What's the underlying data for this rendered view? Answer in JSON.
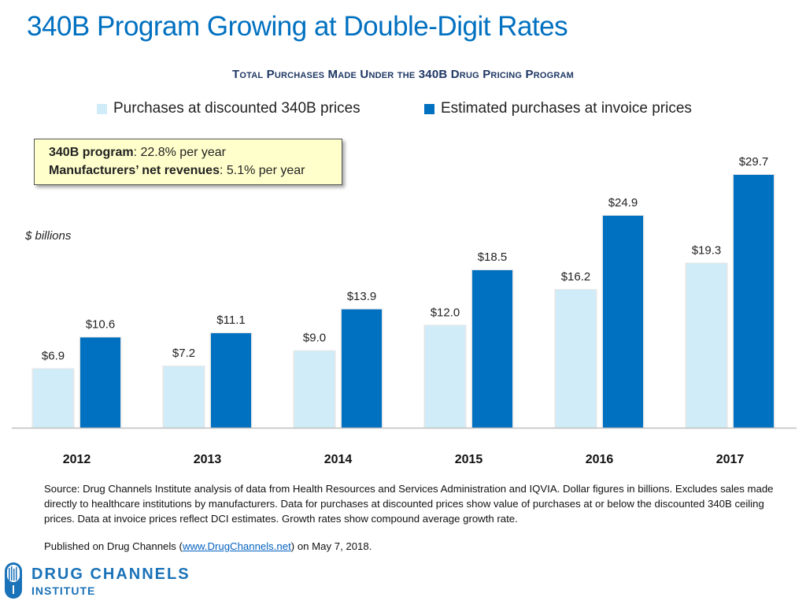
{
  "header": {
    "title": "340B Program Growing at Double-Digit Rates",
    "subtitle": "Total Purchases Made Under the 340B Drug Pricing Program"
  },
  "callout": {
    "line1_bold": "340B program",
    "line1_rest": ": 22.8% per year",
    "line2_bold": "Manufacturers’ net revenues",
    "line2_rest": ": 5.1% per year"
  },
  "colors": {
    "title": "#0070c0",
    "subtitle": "#1f3864",
    "discounted": "#d0ecf8",
    "invoice": "#0070c0",
    "callout_bg": "#ffffcc"
  },
  "chart_data": {
    "type": "bar",
    "title": "Total Purchases Made Under the 340B Drug Pricing Program",
    "xlabel": "",
    "ylabel": "$ billions",
    "categories": [
      "2012",
      "2013",
      "2014",
      "2015",
      "2016",
      "2017"
    ],
    "series": [
      {
        "name": "Purchases at discounted 340B prices",
        "values": [
          6.9,
          7.2,
          9.0,
          12.0,
          16.2,
          19.3
        ],
        "labels": [
          "$6.9",
          "$7.2",
          "$9.0",
          "$12.0",
          "$16.2",
          "$19.3"
        ]
      },
      {
        "name": "Estimated purchases at invoice prices",
        "values": [
          10.6,
          11.1,
          13.9,
          18.5,
          24.9,
          29.7
        ],
        "labels": [
          "$10.6",
          "$11.1",
          "$13.9",
          "$18.5",
          "$24.9",
          "$29.7"
        ]
      }
    ],
    "ylim": [
      0,
      30
    ],
    "grid": false,
    "legend": "top-center",
    "annotations": [
      "340B program: 22.8% per year",
      "Manufacturers’ net revenues: 5.1% per year"
    ]
  },
  "footer": {
    "source_text": "Source: Drug Channels Institute analysis of data from Health Resources and Services Administration  and IQVIA. Dollar figures in billions. Excludes sales made directly to healthcare institutions by manufacturers. Data for purchases at discounted prices show value of purchases at or below the discounted 340B ceiling prices.  Data at invoice prices reflect DCI estimates. Growth rates show compound average growth rate.",
    "published_prefix": "Published on Drug Channels (",
    "published_link": "www.DrugChannels.net",
    "published_suffix": ") on May 7, 2018."
  },
  "logo": {
    "line1": "DRUG CHANNELS",
    "line2": "INSTITUTE",
    "icon": "pill-capsule-icon"
  }
}
